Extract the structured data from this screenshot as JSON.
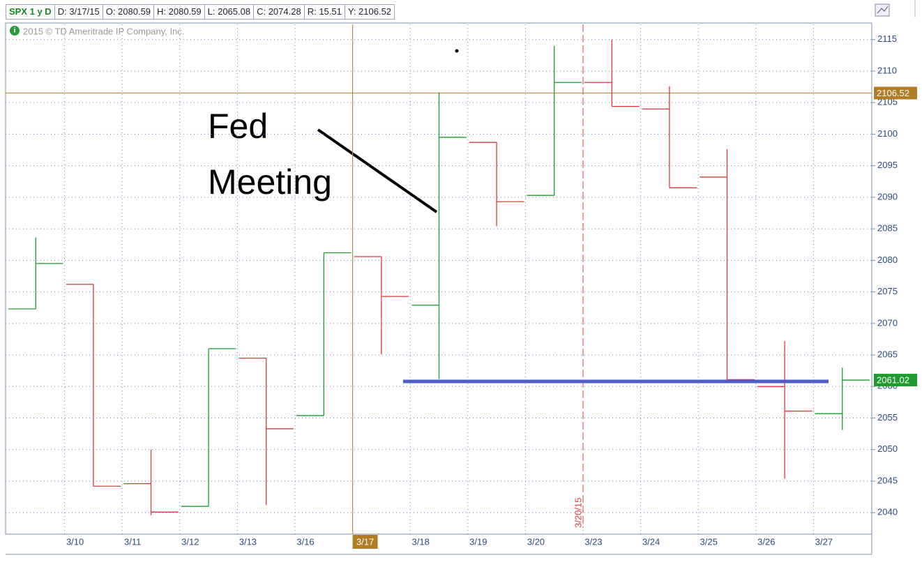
{
  "chart_data": {
    "type": "ohlc",
    "header": [
      "SPX 1 y D",
      "D: 3/17/15",
      "O: 2080.59",
      "H: 2080.59",
      "L: 2065.08",
      "C: 2074.28",
      "R: 15.51",
      "Y: 2106.52"
    ],
    "copyright": "2015 © TD Ameritrade IP Company, Inc.",
    "annotation": [
      "Fed",
      "Meeting"
    ],
    "event_label": "3/20/15",
    "categories": [
      null,
      "3/10",
      "3/11",
      "3/12",
      "3/13",
      "3/16",
      "3/17",
      "3/18",
      "3/19",
      "3/20",
      "3/23",
      "3/24",
      "3/25",
      "3/26",
      "3/27"
    ],
    "highlight_category": 6,
    "open": [
      2072.3,
      2076.2,
      2044.6,
      2041.0,
      2064.5,
      2055.4,
      2080.59,
      2072.9,
      2098.7,
      2090.3,
      2108.2,
      2104.0,
      2093.2,
      2060.0,
      2055.7
    ],
    "high": [
      2083.6,
      2076.2,
      2050.0,
      2066.0,
      2064.5,
      2081.2,
      2080.59,
      2106.6,
      2098.7,
      2114.0,
      2115.0,
      2107.6,
      2097.6,
      2067.2,
      2063.0
    ],
    "low": [
      2072.3,
      2044.2,
      2039.6,
      2041.0,
      2041.2,
      2055.4,
      2065.08,
      2061.2,
      2085.4,
      2090.3,
      2104.4,
      2091.5,
      2061.1,
      2045.4,
      2053.1
    ],
    "close": [
      2079.5,
      2044.2,
      2040.1,
      2066.0,
      2053.3,
      2081.2,
      2074.28,
      2099.5,
      2089.3,
      2108.2,
      2104.4,
      2091.5,
      2061.1,
      2056.1,
      2061.02
    ],
    "up_color": "#1f9a2e",
    "down_color": "#e0373a",
    "price_lines": [
      {
        "value": 2106.52,
        "color": "#b07d26"
      },
      {
        "value": 2061.02,
        "color": "#1f9a2e"
      }
    ],
    "support_level": 2060.8,
    "ylim": [
      2036.6,
      2117.4
    ],
    "yticks": [
      2040,
      2045,
      2050,
      2055,
      2060,
      2065,
      2070,
      2075,
      2080,
      2085,
      2090,
      2095,
      2100,
      2105,
      2110,
      2115
    ],
    "grid": true
  }
}
